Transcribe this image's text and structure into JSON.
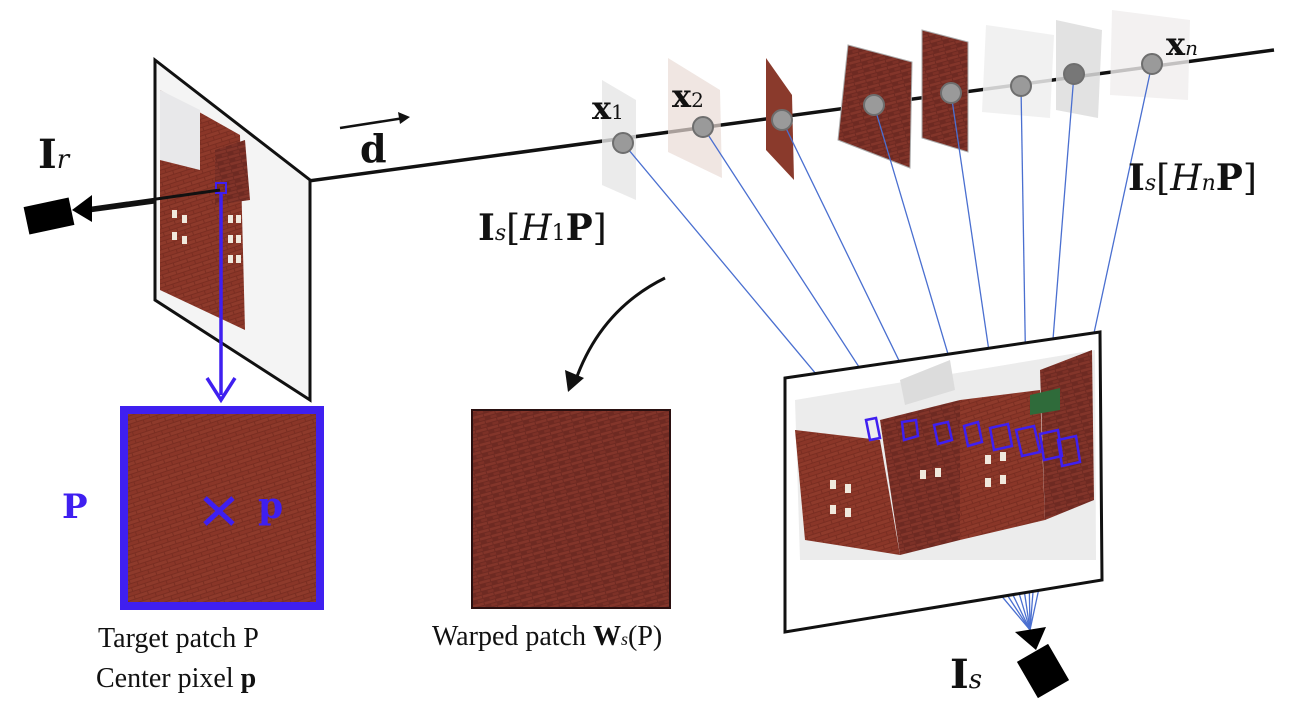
{
  "labels": {
    "ref_camera": {
      "bold": "I",
      "sub": "r"
    },
    "direction": "d",
    "x1": {
      "bold": "x",
      "sub": "1"
    },
    "x2": {
      "bold": "x",
      "sub": "2"
    },
    "xn": {
      "bold": "x",
      "sub": "n"
    },
    "src_h1": {
      "bold": "I",
      "sub": "s",
      "open": "[",
      "h": "H",
      "hsub": "1",
      "p": "P",
      "close": "]"
    },
    "src_hn": {
      "bold": "I",
      "sub": "s",
      "open": "[",
      "h": "H",
      "hsub": "n",
      "p": "P",
      "close": "]"
    },
    "patch_symbol": "P",
    "center_mark": "×",
    "center_symbol": "p",
    "target_line1": "Target patch P",
    "target_line2_prefix": "Center pixel ",
    "target_line2_bold": "p",
    "warped_prefix": "Warped patch ",
    "warped_bold": "W",
    "warped_sub": "s",
    "warped_arg": "(P)",
    "src_camera": {
      "bold": "I",
      "sub": "s"
    }
  },
  "colors": {
    "accent_blue": "#3f1ff0",
    "ray_blue": "#4a6fd0",
    "brick": "#7a2e22",
    "point_gray": "#9a9a9a"
  },
  "icons": [
    "camera-icon",
    "camera-icon",
    "curved-arrow-icon",
    "down-arrow-icon"
  ]
}
